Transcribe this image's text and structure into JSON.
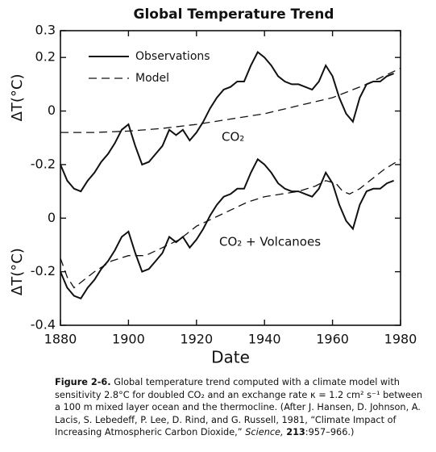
{
  "title": "Global Temperature Trend",
  "xlabel": "Date",
  "chart_data": [
    {
      "type": "line",
      "ylabel": "ΔT(°C)",
      "annotation": "CO₂",
      "xlim": [
        1880,
        1980
      ],
      "xticks": [
        1880,
        1900,
        1920,
        1940,
        1960,
        1980
      ],
      "ylim": [
        -0.8,
        0.3
      ],
      "yticks": [
        0.3,
        0.2,
        0,
        -0.2
      ],
      "legend": "upper left",
      "series": [
        {
          "name": "Observations",
          "color": "#111111",
          "dash": false,
          "x": [
            1880,
            1882,
            1884,
            1886,
            1888,
            1890,
            1892,
            1894,
            1896,
            1898,
            1900,
            1902,
            1904,
            1906,
            1908,
            1910,
            1912,
            1914,
            1916,
            1918,
            1920,
            1922,
            1924,
            1926,
            1928,
            1930,
            1932,
            1934,
            1936,
            1938,
            1940,
            1942,
            1944,
            1946,
            1948,
            1950,
            1952,
            1954,
            1956,
            1958,
            1960,
            1962,
            1964,
            1966,
            1968,
            1970,
            1972,
            1974,
            1976,
            1978
          ],
          "values": [
            -0.2,
            -0.26,
            -0.29,
            -0.3,
            -0.26,
            -0.23,
            -0.19,
            -0.16,
            -0.12,
            -0.07,
            -0.05,
            -0.13,
            -0.2,
            -0.19,
            -0.16,
            -0.13,
            -0.07,
            -0.09,
            -0.07,
            -0.11,
            -0.08,
            -0.04,
            0.01,
            0.05,
            0.08,
            0.09,
            0.11,
            0.11,
            0.17,
            0.22,
            0.2,
            0.17,
            0.13,
            0.11,
            0.1,
            0.1,
            0.09,
            0.08,
            0.11,
            0.17,
            0.13,
            0.05,
            -0.01,
            -0.04,
            0.05,
            0.1,
            0.11,
            0.11,
            0.13,
            0.14
          ]
        },
        {
          "name": "Model",
          "color": "#111111",
          "dash": true,
          "x": [
            1880,
            1890,
            1900,
            1910,
            1920,
            1930,
            1940,
            1950,
            1960,
            1970,
            1980
          ],
          "values": [
            -0.08,
            -0.08,
            -0.075,
            -0.065,
            -0.05,
            -0.03,
            -0.01,
            0.02,
            0.05,
            0.1,
            0.16
          ]
        }
      ]
    },
    {
      "type": "line",
      "ylabel": "ΔT(°C)",
      "annotation": "CO₂ + Volcanoes",
      "xlim": [
        1880,
        1980
      ],
      "ylim": [
        -0.4,
        0.7
      ],
      "yticks": [
        0,
        -0.2,
        -0.4
      ],
      "series": [
        {
          "color": "#111111",
          "dash": false,
          "x": [
            1880,
            1882,
            1884,
            1886,
            1888,
            1890,
            1892,
            1894,
            1896,
            1898,
            1900,
            1902,
            1904,
            1906,
            1908,
            1910,
            1912,
            1914,
            1916,
            1918,
            1920,
            1922,
            1924,
            1926,
            1928,
            1930,
            1932,
            1934,
            1936,
            1938,
            1940,
            1942,
            1944,
            1946,
            1948,
            1950,
            1952,
            1954,
            1956,
            1958,
            1960,
            1962,
            1964,
            1966,
            1968,
            1970,
            1972,
            1974,
            1976,
            1978
          ],
          "values": [
            -0.2,
            -0.26,
            -0.29,
            -0.3,
            -0.26,
            -0.23,
            -0.19,
            -0.16,
            -0.12,
            -0.07,
            -0.05,
            -0.13,
            -0.2,
            -0.19,
            -0.16,
            -0.13,
            -0.07,
            -0.09,
            -0.07,
            -0.11,
            -0.08,
            -0.04,
            0.01,
            0.05,
            0.08,
            0.09,
            0.11,
            0.11,
            0.17,
            0.22,
            0.2,
            0.17,
            0.13,
            0.11,
            0.1,
            0.1,
            0.09,
            0.08,
            0.11,
            0.17,
            0.13,
            0.05,
            -0.01,
            -0.04,
            0.05,
            0.1,
            0.11,
            0.11,
            0.13,
            0.14
          ]
        },
        {
          "color": "#111111",
          "dash": true,
          "x": [
            1880,
            1882,
            1884,
            1886,
            1890,
            1895,
            1900,
            1905,
            1910,
            1915,
            1920,
            1925,
            1930,
            1935,
            1940,
            1945,
            1950,
            1955,
            1958,
            1961,
            1963,
            1965,
            1968,
            1971,
            1975,
            1980
          ],
          "values": [
            -0.15,
            -0.22,
            -0.26,
            -0.24,
            -0.2,
            -0.16,
            -0.14,
            -0.14,
            -0.11,
            -0.08,
            -0.03,
            0.0,
            0.03,
            0.06,
            0.08,
            0.09,
            0.1,
            0.12,
            0.14,
            0.13,
            0.1,
            0.09,
            0.11,
            0.14,
            0.18,
            0.22
          ]
        }
      ]
    }
  ],
  "caption": {
    "label": "Figure 2-6.",
    "text": "Global temperature trend computed with a climate model with sensitivity 2.8°C for doubled CO₂ and an exchange rate κ = 1.2 cm² s⁻¹ between a 100 m mixed layer ocean and the thermocline. (After J. Hansen, D. Johnson, A. Lacis, S. Lebedeff, P. Lee, D. Rind, and G. Russell, 1981, “Climate Impact of Increasing Atmospheric Carbon Dioxide,”",
    "journal": "Science,",
    "volume": "213",
    "pages": ":957–966.)"
  }
}
